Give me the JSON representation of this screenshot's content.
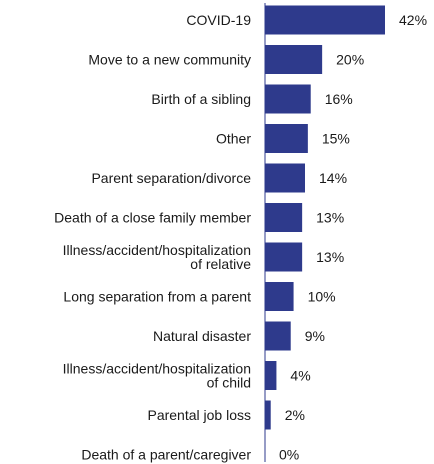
{
  "chart_data": {
    "type": "bar",
    "orientation": "horizontal",
    "categories": [
      [
        "COVID-19"
      ],
      [
        "Move to a new community"
      ],
      [
        "Birth of a sibling"
      ],
      [
        "Other"
      ],
      [
        "Parent separation/divorce"
      ],
      [
        "Death of a close family member"
      ],
      [
        "Illness/accident/hospitalization",
        "of relative"
      ],
      [
        "Long separation from a parent"
      ],
      [
        "Natural disaster"
      ],
      [
        "Illness/accident/hospitalization",
        "of child"
      ],
      [
        "Parental job loss"
      ],
      [
        "Death of a parent/caregiver"
      ]
    ],
    "values": [
      42,
      20,
      16,
      15,
      14,
      13,
      13,
      10,
      9,
      4,
      2,
      0
    ],
    "value_labels": [
      "42%",
      "20%",
      "16%",
      "15%",
      "14%",
      "13%",
      "13%",
      "10%",
      "9%",
      "4%",
      "2%",
      "0%"
    ],
    "unit": "%",
    "xlim": [
      0,
      42
    ],
    "title": "",
    "xlabel": "",
    "ylabel": "",
    "grid": false,
    "bar_color": "#2e3a8c"
  }
}
